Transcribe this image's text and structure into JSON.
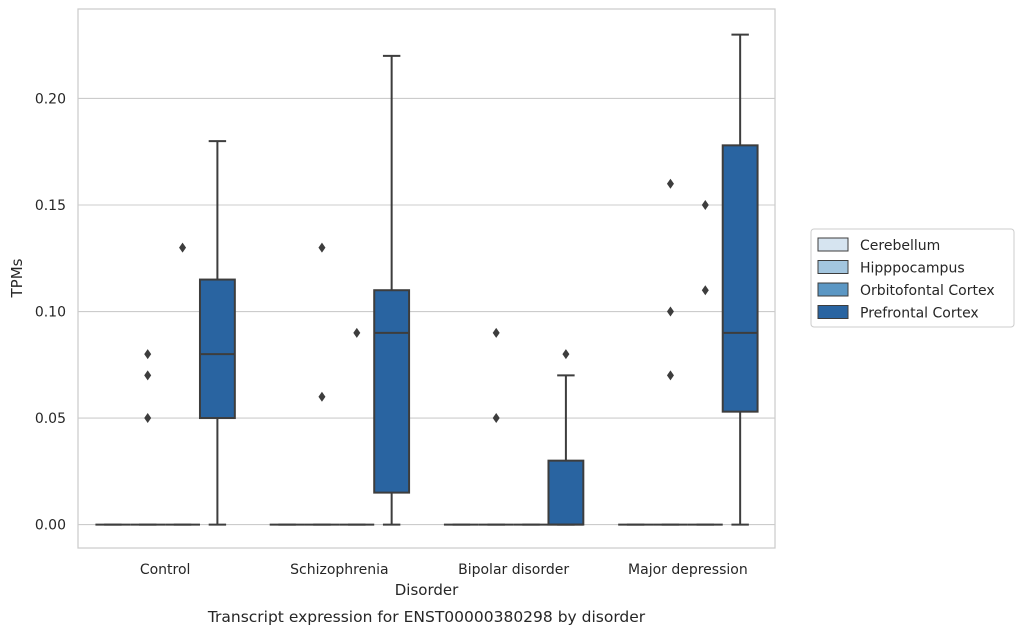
{
  "chart_data": {
    "type": "box",
    "caption": "Transcript expression for ENST00000380298 by disorder",
    "xlabel": "Disorder",
    "ylabel": "TPMs",
    "ylim": [
      -0.011,
      0.242
    ],
    "yticks": [
      0.0,
      0.05,
      0.1,
      0.15,
      0.2
    ],
    "ytick_labels": [
      "0.00",
      "0.05",
      "0.10",
      "0.15",
      "0.20"
    ],
    "grid": "horizontal",
    "legend_position": "right",
    "categories": [
      "Control",
      "Schizophrenia",
      "Bipolar disorder",
      "Major depression"
    ],
    "hue_order": [
      "Cerebellum",
      "Hipppocampus",
      "Orbitofontal Cortex",
      "Prefrontal Cortex"
    ],
    "series": [
      {
        "name": "Cerebellum",
        "color": "#d6e4f0",
        "boxes": [
          {
            "q1": 0,
            "median": 0,
            "q3": 0,
            "whisker_low": 0,
            "whisker_high": 0,
            "outliers": []
          },
          {
            "q1": 0,
            "median": 0,
            "q3": 0,
            "whisker_low": 0,
            "whisker_high": 0,
            "outliers": []
          },
          {
            "q1": 0,
            "median": 0,
            "q3": 0,
            "whisker_low": 0,
            "whisker_high": 0,
            "outliers": []
          },
          {
            "q1": 0,
            "median": 0,
            "q3": 0,
            "whisker_low": 0,
            "whisker_high": 0,
            "outliers": []
          }
        ]
      },
      {
        "name": "Hipppocampus",
        "color": "#a3c6df",
        "boxes": [
          {
            "q1": 0,
            "median": 0,
            "q3": 0,
            "whisker_low": 0,
            "whisker_high": 0,
            "outliers": [
              0.05,
              0.07,
              0.08
            ]
          },
          {
            "q1": 0,
            "median": 0,
            "q3": 0,
            "whisker_low": 0,
            "whisker_high": 0,
            "outliers": [
              0.06,
              0.13
            ]
          },
          {
            "q1": 0,
            "median": 0,
            "q3": 0,
            "whisker_low": 0,
            "whisker_high": 0,
            "outliers": [
              0.05,
              0.09
            ]
          },
          {
            "q1": 0,
            "median": 0,
            "q3": 0,
            "whisker_low": 0,
            "whisker_high": 0,
            "outliers": [
              0.07,
              0.1,
              0.16
            ]
          }
        ]
      },
      {
        "name": "Orbitofontal Cortex",
        "color": "#5b97c4",
        "boxes": [
          {
            "q1": 0,
            "median": 0,
            "q3": 0,
            "whisker_low": 0,
            "whisker_high": 0,
            "outliers": [
              0.13
            ]
          },
          {
            "q1": 0,
            "median": 0,
            "q3": 0,
            "whisker_low": 0,
            "whisker_high": 0,
            "outliers": [
              0.09
            ]
          },
          {
            "q1": 0,
            "median": 0,
            "q3": 0,
            "whisker_low": 0,
            "whisker_high": 0,
            "outliers": []
          },
          {
            "q1": 0,
            "median": 0,
            "q3": 0,
            "whisker_low": 0,
            "whisker_high": 0,
            "outliers": [
              0.11,
              0.15
            ]
          }
        ]
      },
      {
        "name": "Prefrontal Cortex",
        "color": "#2964a1",
        "boxes": [
          {
            "q1": 0.05,
            "median": 0.08,
            "q3": 0.115,
            "whisker_low": 0,
            "whisker_high": 0.18,
            "outliers": []
          },
          {
            "q1": 0.015,
            "median": 0.09,
            "q3": 0.11,
            "whisker_low": 0,
            "whisker_high": 0.22,
            "outliers": []
          },
          {
            "q1": 0,
            "median": 0,
            "q3": 0.03,
            "whisker_low": 0,
            "whisker_high": 0.07,
            "outliers": [
              0.08
            ]
          },
          {
            "q1": 0.053,
            "median": 0.09,
            "q3": 0.178,
            "whisker_low": 0,
            "whisker_high": 0.23,
            "outliers": []
          }
        ]
      }
    ]
  }
}
